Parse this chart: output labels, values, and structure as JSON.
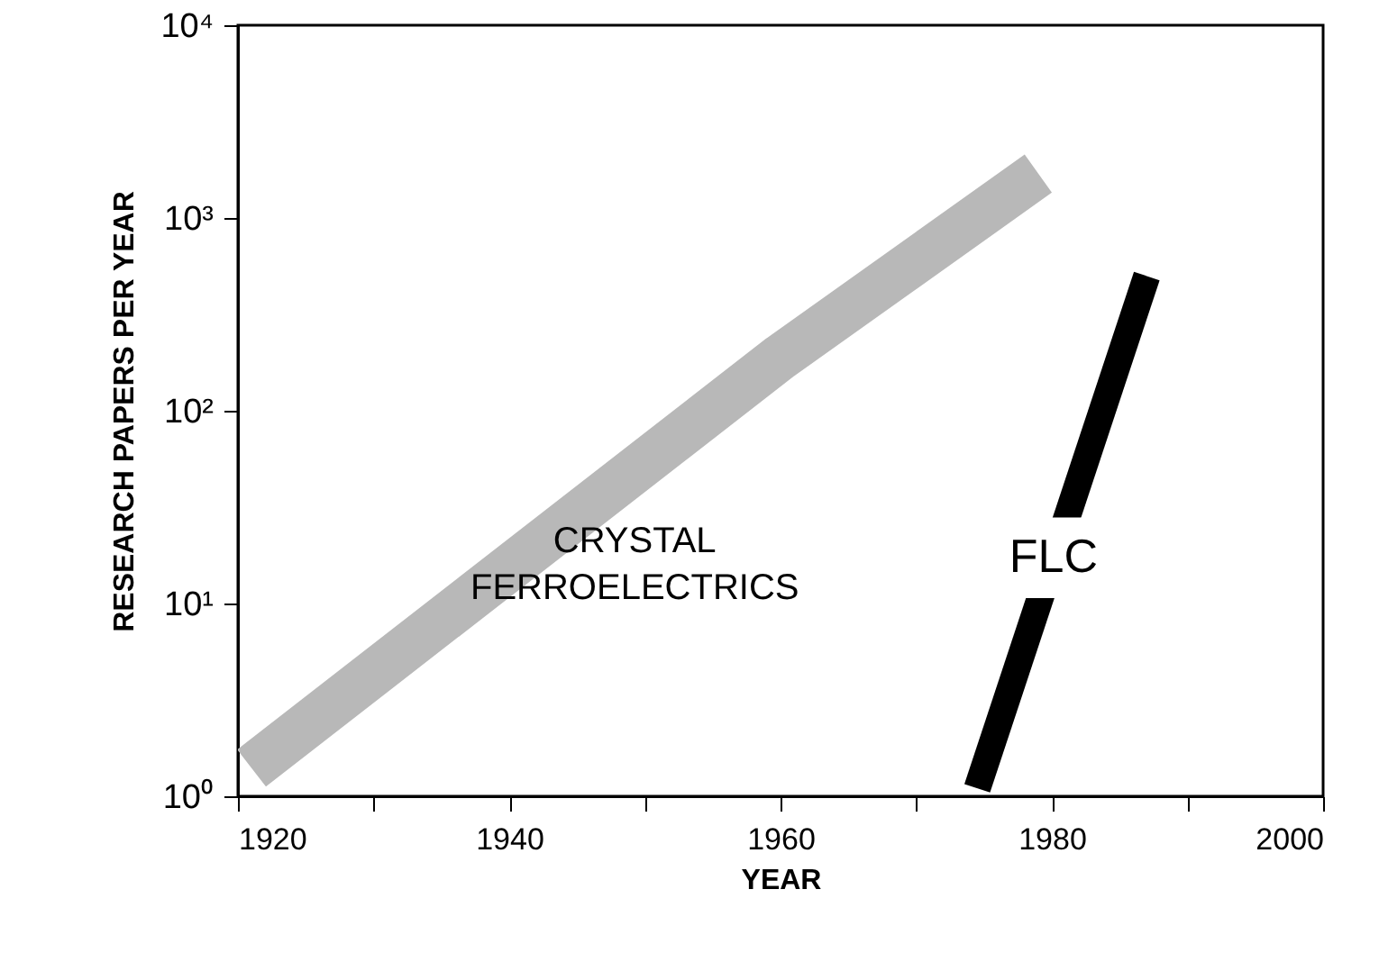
{
  "chart_data": {
    "type": "line",
    "xlabel": "YEAR",
    "ylabel": "RESEARCH PAPERS PER YEAR",
    "log": "y",
    "grid": false,
    "marker": "none",
    "line_style": "solid",
    "xlim": [
      1920,
      2000
    ],
    "ylim": [
      1,
      10000
    ],
    "xticks": [
      1920,
      {
        "value": 1930,
        "label": null
      },
      1940,
      {
        "value": 1950,
        "label": null
      },
      1960,
      {
        "value": 1970,
        "label": null
      },
      1980,
      {
        "value": 1990,
        "label": null
      },
      2000
    ],
    "yticks": [
      {
        "value": 1,
        "label": "10⁰"
      },
      {
        "value": 10,
        "label": "10¹"
      },
      {
        "value": 100,
        "label": "10²"
      },
      {
        "value": 1000,
        "label": "10³"
      },
      {
        "value": 10000,
        "label": "10⁴"
      }
    ],
    "series": [
      {
        "name": "CRYSTAL FERROELECTRICS",
        "color": "#b8b8b8",
        "x": [
          1921,
          1960,
          1979
        ],
        "values": [
          1.4,
          190,
          1700
        ]
      },
      {
        "name": "FLC",
        "color": "#000000",
        "x": [
          1974.5,
          1987
        ],
        "values": [
          1.1,
          500
        ]
      }
    ]
  }
}
